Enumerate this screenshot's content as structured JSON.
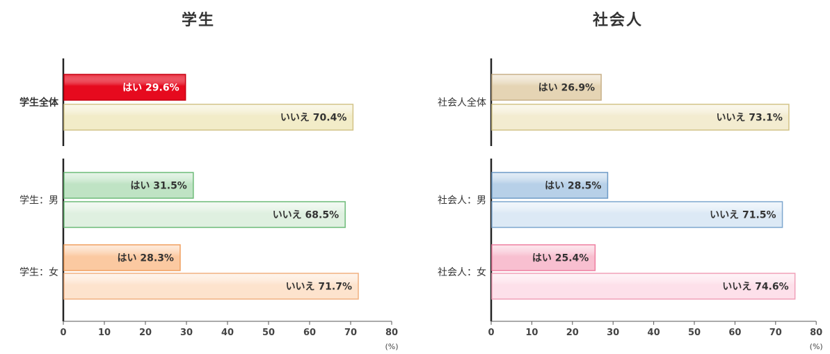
{
  "chart_data": [
    {
      "type": "bar",
      "orientation": "horizontal",
      "title": "学生",
      "categories": [
        "学生全体",
        "学生：男",
        "学生：女"
      ],
      "highlight_category": "学生全体",
      "highlight_color": "#d9001f",
      "series": [
        {
          "name": "はい",
          "values": [
            29.6,
            31.5,
            28.3
          ]
        },
        {
          "name": "いいえ",
          "values": [
            70.4,
            68.5,
            71.7
          ]
        }
      ],
      "bar_labels": [
        [
          "はい 29.6%",
          "いいえ 70.4%"
        ],
        [
          "はい 31.5%",
          "いいえ 68.5%"
        ],
        [
          "はい 28.3%",
          "いいえ 71.7%"
        ]
      ],
      "colors": [
        {
          "yes": "#e60a1e",
          "no": "#f2ecc8",
          "yes_border": "#c80010",
          "no_border": "#d2c387",
          "yes_text": "#ffffff",
          "no_text": "#333333"
        },
        {
          "yes": "#bfe3c4",
          "no": "#dff0e0",
          "yes_border": "#6dbb78",
          "no_border": "#6dbb78",
          "yes_text": "#333333",
          "no_text": "#333333"
        },
        {
          "yes": "#fbc9a1",
          "no": "#fde3cd",
          "yes_border": "#f0a060",
          "no_border": "#f0b080",
          "yes_text": "#333333",
          "no_text": "#333333"
        }
      ],
      "xticks": [
        0,
        10,
        20,
        30,
        40,
        50,
        60,
        70,
        80
      ],
      "xlim": [
        0,
        80
      ],
      "unit": "(%)",
      "grid": false
    },
    {
      "type": "bar",
      "orientation": "horizontal",
      "title": "社会人",
      "categories": [
        "社会人全体",
        "社会人：男",
        "社会人：女"
      ],
      "highlight_category": "",
      "highlight_color": "#333333",
      "series": [
        {
          "name": "はい",
          "values": [
            26.9,
            28.5,
            25.4
          ]
        },
        {
          "name": "いいえ",
          "values": [
            73.1,
            71.5,
            74.6
          ]
        }
      ],
      "bar_labels": [
        [
          "はい 26.9%",
          "いいえ 73.1%"
        ],
        [
          "はい 28.5%",
          "いいえ 71.5%"
        ],
        [
          "はい 25.4%",
          "いいえ  74.6%"
        ]
      ],
      "colors": [
        {
          "yes": "#e5d4b4",
          "no": "#f3ecd0",
          "yes_border": "#c8b088",
          "no_border": "#d2c387",
          "yes_text": "#333333",
          "no_text": "#333333"
        },
        {
          "yes": "#b7d0e8",
          "no": "#dce9f5",
          "yes_border": "#6d9ac6",
          "no_border": "#7ea7cf",
          "yes_text": "#333333",
          "no_text": "#333333"
        },
        {
          "yes": "#f8bfd0",
          "no": "#fde0ea",
          "yes_border": "#ee7fa0",
          "no_border": "#f0a0b8",
          "yes_text": "#333333",
          "no_text": "#333333"
        }
      ],
      "xticks": [
        0,
        10,
        20,
        30,
        40,
        50,
        60,
        70,
        80
      ],
      "xlim": [
        0,
        80
      ],
      "unit": "(%)",
      "grid": false
    }
  ]
}
